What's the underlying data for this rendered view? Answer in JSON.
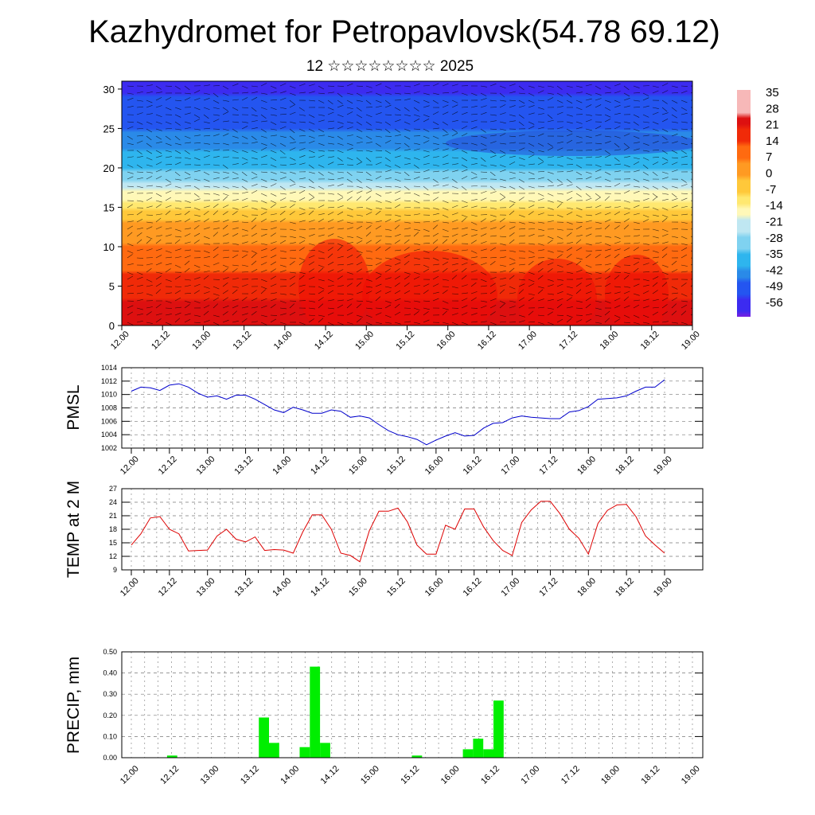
{
  "title": "Kazhydromet for Petropavlovsk(54.78 69.12)",
  "subtitle": "12 ☆☆☆☆☆☆☆☆ 2025",
  "chart_data": [
    {
      "type": "heatmap",
      "x_ticks": [
        "12.00",
        "12.12",
        "13.00",
        "13.12",
        "14.00",
        "14.12",
        "15.00",
        "15.12",
        "16.00",
        "16.12",
        "17.00",
        "17.12",
        "18.00",
        "18.12",
        "19.00"
      ],
      "y_ticks": [
        "0",
        "5",
        "10",
        "15",
        "20",
        "25",
        "30"
      ],
      "ylim": [
        0,
        31
      ],
      "colorbar_labels": [
        "35",
        "28",
        "21",
        "14",
        "7",
        "0",
        "-7",
        "-14",
        "-21",
        "-28",
        "-35",
        "-42",
        "-49",
        "-56"
      ],
      "profile": [
        {
          "level": 0,
          "temp": 28
        },
        {
          "level": 5,
          "temp": 18
        },
        {
          "level": 10,
          "temp": 8
        },
        {
          "level": 14,
          "temp": -2
        },
        {
          "level": 16,
          "temp": -12
        },
        {
          "level": 20,
          "temp": -32
        },
        {
          "level": 25,
          "temp": -46
        },
        {
          "level": 31,
          "temp": -54
        }
      ],
      "overlay": "wind barbs"
    },
    {
      "type": "line",
      "ylabel": "PMSL",
      "ylim": [
        1002,
        1014
      ],
      "y_ticks": [
        "1002",
        "1004",
        "1006",
        "1008",
        "1010",
        "1012",
        "1014"
      ],
      "x_ticks": [
        "12.00",
        "12.12",
        "13.00",
        "13.12",
        "14.00",
        "14.12",
        "15.00",
        "15.12",
        "16.00",
        "16.12",
        "17.00",
        "17.12",
        "18.00",
        "18.12",
        "19.00"
      ],
      "color": "#0000cc",
      "series": [
        {
          "values": [
            1010.5,
            1011.1,
            1011.0,
            1010.6,
            1011.4,
            1011.6,
            1011.1,
            1010.2,
            1009.6,
            1009.8,
            1009.3,
            1009.9,
            1009.9,
            1009.3,
            1008.5,
            1007.7,
            1007.3,
            1008.1,
            1007.7,
            1007.2,
            1007.2,
            1007.7,
            1007.5,
            1006.6,
            1006.8,
            1006.5,
            1005.5,
            1004.6,
            1004.0,
            1003.7,
            1003.3,
            1002.5,
            1003.2,
            1003.8,
            1004.3,
            1003.8,
            1003.9,
            1005.0,
            1005.7,
            1005.8,
            1006.5,
            1006.8,
            1006.6,
            1006.5,
            1006.4,
            1006.4,
            1007.4,
            1007.6,
            1008.2,
            1009.3,
            1009.4,
            1009.5,
            1009.8,
            1010.5,
            1011.1,
            1011.1,
            1012.2
          ]
        }
      ]
    },
    {
      "type": "line",
      "ylabel": "TEMP at 2 M",
      "ylim": [
        9,
        27
      ],
      "y_ticks": [
        "9",
        "12",
        "15",
        "18",
        "21",
        "24",
        "27"
      ],
      "x_ticks": [
        "12.00",
        "12.12",
        "13.00",
        "13.12",
        "14.00",
        "14.12",
        "15.00",
        "15.12",
        "16.00",
        "16.12",
        "17.00",
        "17.12",
        "18.00",
        "18.12",
        "19.00"
      ],
      "color": "#dd0000",
      "series": [
        {
          "values": [
            14.5,
            17.0,
            20.5,
            20.8,
            18.0,
            17.0,
            13.2,
            13.3,
            13.4,
            16.5,
            18.0,
            15.8,
            15.2,
            16.3,
            13.3,
            13.5,
            13.4,
            12.7,
            17.4,
            21.2,
            21.2,
            18.0,
            12.7,
            12.2,
            10.8,
            17.7,
            22.0,
            22.0,
            22.7,
            19.6,
            14.5,
            12.5,
            12.5,
            18.9,
            18.0,
            22.5,
            22.5,
            18.5,
            15.5,
            13.3,
            12.2,
            19.5,
            22.3,
            24.2,
            24.2,
            21.5,
            18.0,
            16.0,
            12.5,
            19.3,
            22.2,
            23.4,
            23.5,
            20.8,
            16.5,
            14.5,
            12.7
          ]
        }
      ]
    },
    {
      "type": "bar",
      "ylabel": "PRECIP, mm",
      "ylim": [
        0,
        0.5
      ],
      "y_ticks": [
        "0.00",
        "0.10",
        "0.20",
        "0.30",
        "0.40",
        "0.50"
      ],
      "x_ticks": [
        "12.00",
        "12.12",
        "13.00",
        "13.12",
        "14.00",
        "14.12",
        "15.00",
        "15.12",
        "16.00",
        "16.12",
        "17.00",
        "17.12",
        "18.00",
        "18.12",
        "19.00"
      ],
      "color": "#00ee00",
      "values": [
        0,
        0,
        0,
        0,
        0.01,
        0,
        0,
        0,
        0,
        0,
        0,
        0,
        0,
        0.19,
        0.07,
        0,
        0,
        0.05,
        0.43,
        0.07,
        0,
        0,
        0,
        0,
        0,
        0,
        0,
        0,
        0.01,
        0,
        0,
        0,
        0,
        0.04,
        0.09,
        0.04,
        0.27,
        0,
        0,
        0,
        0,
        0,
        0,
        0,
        0,
        0,
        0,
        0,
        0,
        0,
        0,
        0,
        0,
        0,
        0,
        0
      ]
    }
  ]
}
